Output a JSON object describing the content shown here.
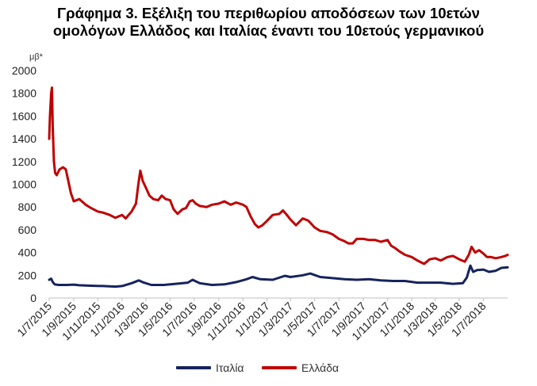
{
  "title_line1": "Γράφημα 3. Εξέλιξη του περιθωρίου αποδόσεων των 10ετών",
  "title_line2": "ομολόγων Ελλάδος και Ιταλίας έναντι του 10ετούς γερμανικού",
  "chart_data": {
    "type": "line",
    "title": "Γράφημα 3. Εξέλιξη του περιθωρίου αποδόσεων των 10ετών ομολόγων Ελλάδος και Ιταλίας έναντι του 10ετούς γερμανικού",
    "ylabel": "μβ*",
    "xlabel": "",
    "ylim": [
      0,
      2000
    ],
    "yticks": [
      0,
      200,
      400,
      600,
      800,
      1000,
      1200,
      1400,
      1600,
      1800,
      2000
    ],
    "xlim": [
      "2015-07-01",
      "2018-08-31"
    ],
    "x_tick_labels": [
      "1/7/2015",
      "1/9/2015",
      "1/11/2015",
      "1/1/2016",
      "1/3/2016",
      "1/5/2016",
      "1/7/2016",
      "1/9/2016",
      "1/11/2016",
      "1/1/2017",
      "1/3/2017",
      "1/5/2017",
      "1/7/2017",
      "1/9/2017",
      "1/11/2017",
      "1/1/2018",
      "1/3/2018",
      "1/5/2018",
      "1/7/2018"
    ],
    "grid": false,
    "legend_position": "bottom",
    "series": [
      {
        "name": "Ιταλία",
        "color": "#17235e",
        "points": [
          [
            "2015-07-01",
            160
          ],
          [
            "2015-07-06",
            170
          ],
          [
            "2015-07-10",
            140
          ],
          [
            "2015-07-15",
            120
          ],
          [
            "2015-07-25",
            115
          ],
          [
            "2015-08-15",
            115
          ],
          [
            "2015-09-01",
            118
          ],
          [
            "2015-09-15",
            112
          ],
          [
            "2015-10-15",
            108
          ],
          [
            "2015-11-15",
            105
          ],
          [
            "2015-12-15",
            100
          ],
          [
            "2016-01-01",
            105
          ],
          [
            "2016-01-25",
            130
          ],
          [
            "2016-02-12",
            155
          ],
          [
            "2016-02-25",
            135
          ],
          [
            "2016-03-15",
            115
          ],
          [
            "2016-04-15",
            115
          ],
          [
            "2016-05-15",
            125
          ],
          [
            "2016-06-15",
            135
          ],
          [
            "2016-06-27",
            160
          ],
          [
            "2016-07-15",
            130
          ],
          [
            "2016-08-15",
            115
          ],
          [
            "2016-09-15",
            120
          ],
          [
            "2016-10-15",
            140
          ],
          [
            "2016-11-10",
            165
          ],
          [
            "2016-11-25",
            185
          ],
          [
            "2016-12-15",
            165
          ],
          [
            "2017-01-15",
            160
          ],
          [
            "2017-02-15",
            195
          ],
          [
            "2017-03-01",
            185
          ],
          [
            "2017-04-01",
            200
          ],
          [
            "2017-04-20",
            215
          ],
          [
            "2017-05-15",
            185
          ],
          [
            "2017-06-15",
            175
          ],
          [
            "2017-07-15",
            165
          ],
          [
            "2017-08-15",
            160
          ],
          [
            "2017-09-15",
            165
          ],
          [
            "2017-10-15",
            155
          ],
          [
            "2017-11-15",
            150
          ],
          [
            "2017-12-15",
            150
          ],
          [
            "2018-01-15",
            135
          ],
          [
            "2018-02-15",
            135
          ],
          [
            "2018-03-15",
            135
          ],
          [
            "2018-04-15",
            125
          ],
          [
            "2018-05-10",
            130
          ],
          [
            "2018-05-20",
            180
          ],
          [
            "2018-05-29",
            285
          ],
          [
            "2018-06-05",
            230
          ],
          [
            "2018-06-15",
            245
          ],
          [
            "2018-07-01",
            250
          ],
          [
            "2018-07-15",
            230
          ],
          [
            "2018-08-01",
            240
          ],
          [
            "2018-08-15",
            265
          ],
          [
            "2018-08-31",
            270
          ]
        ]
      },
      {
        "name": "Ελλάδα",
        "color": "#c00000",
        "points": [
          [
            "2015-07-01",
            1400
          ],
          [
            "2015-07-03",
            1600
          ],
          [
            "2015-07-06",
            1800
          ],
          [
            "2015-07-08",
            1850
          ],
          [
            "2015-07-10",
            1500
          ],
          [
            "2015-07-13",
            1200
          ],
          [
            "2015-07-16",
            1100
          ],
          [
            "2015-07-20",
            1080
          ],
          [
            "2015-07-27",
            1130
          ],
          [
            "2015-08-05",
            1150
          ],
          [
            "2015-08-12",
            1130
          ],
          [
            "2015-08-20",
            1000
          ],
          [
            "2015-08-25",
            920
          ],
          [
            "2015-09-01",
            850
          ],
          [
            "2015-09-15",
            870
          ],
          [
            "2015-10-01",
            820
          ],
          [
            "2015-10-15",
            790
          ],
          [
            "2015-11-01",
            760
          ],
          [
            "2015-11-15",
            750
          ],
          [
            "2015-12-01",
            730
          ],
          [
            "2015-12-15",
            705
          ],
          [
            "2016-01-01",
            730
          ],
          [
            "2016-01-10",
            700
          ],
          [
            "2016-01-25",
            760
          ],
          [
            "2016-02-05",
            830
          ],
          [
            "2016-02-11",
            1000
          ],
          [
            "2016-02-16",
            1120
          ],
          [
            "2016-02-22",
            1030
          ],
          [
            "2016-03-01",
            970
          ],
          [
            "2016-03-10",
            900
          ],
          [
            "2016-03-20",
            870
          ],
          [
            "2016-04-01",
            860
          ],
          [
            "2016-04-10",
            900
          ],
          [
            "2016-04-20",
            870
          ],
          [
            "2016-05-01",
            860
          ],
          [
            "2016-05-10",
            780
          ],
          [
            "2016-05-20",
            740
          ],
          [
            "2016-06-01",
            780
          ],
          [
            "2016-06-10",
            790
          ],
          [
            "2016-06-20",
            850
          ],
          [
            "2016-06-27",
            860
          ],
          [
            "2016-07-05",
            830
          ],
          [
            "2016-07-15",
            810
          ],
          [
            "2016-08-01",
            800
          ],
          [
            "2016-08-15",
            820
          ],
          [
            "2016-09-01",
            830
          ],
          [
            "2016-09-15",
            850
          ],
          [
            "2016-10-01",
            820
          ],
          [
            "2016-10-15",
            840
          ],
          [
            "2016-11-01",
            820
          ],
          [
            "2016-11-10",
            800
          ],
          [
            "2016-11-20",
            720
          ],
          [
            "2016-12-01",
            650
          ],
          [
            "2016-12-10",
            620
          ],
          [
            "2016-12-20",
            640
          ],
          [
            "2017-01-01",
            680
          ],
          [
            "2017-01-15",
            730
          ],
          [
            "2017-02-01",
            740
          ],
          [
            "2017-02-10",
            770
          ],
          [
            "2017-02-20",
            730
          ],
          [
            "2017-03-01",
            690
          ],
          [
            "2017-03-15",
            640
          ],
          [
            "2017-04-01",
            700
          ],
          [
            "2017-04-15",
            680
          ],
          [
            "2017-05-01",
            620
          ],
          [
            "2017-05-15",
            590
          ],
          [
            "2017-06-01",
            580
          ],
          [
            "2017-06-15",
            560
          ],
          [
            "2017-07-01",
            520
          ],
          [
            "2017-07-15",
            500
          ],
          [
            "2017-07-25",
            480
          ],
          [
            "2017-08-05",
            480
          ],
          [
            "2017-08-15",
            520
          ],
          [
            "2017-09-01",
            520
          ],
          [
            "2017-09-15",
            510
          ],
          [
            "2017-10-01",
            510
          ],
          [
            "2017-10-15",
            495
          ],
          [
            "2017-11-01",
            510
          ],
          [
            "2017-11-10",
            460
          ],
          [
            "2017-11-20",
            440
          ],
          [
            "2017-12-01",
            410
          ],
          [
            "2017-12-15",
            380
          ],
          [
            "2018-01-01",
            360
          ],
          [
            "2018-01-15",
            330
          ],
          [
            "2018-02-01",
            300
          ],
          [
            "2018-02-15",
            340
          ],
          [
            "2018-03-01",
            350
          ],
          [
            "2018-03-15",
            330
          ],
          [
            "2018-04-01",
            360
          ],
          [
            "2018-04-15",
            370
          ],
          [
            "2018-05-01",
            340
          ],
          [
            "2018-05-15",
            320
          ],
          [
            "2018-05-25",
            380
          ],
          [
            "2018-06-01",
            450
          ],
          [
            "2018-06-10",
            400
          ],
          [
            "2018-06-20",
            420
          ],
          [
            "2018-07-01",
            390
          ],
          [
            "2018-07-10",
            360
          ],
          [
            "2018-07-20",
            360
          ],
          [
            "2018-08-01",
            350
          ],
          [
            "2018-08-15",
            360
          ],
          [
            "2018-08-25",
            370
          ],
          [
            "2018-08-31",
            380
          ]
        ]
      }
    ]
  }
}
